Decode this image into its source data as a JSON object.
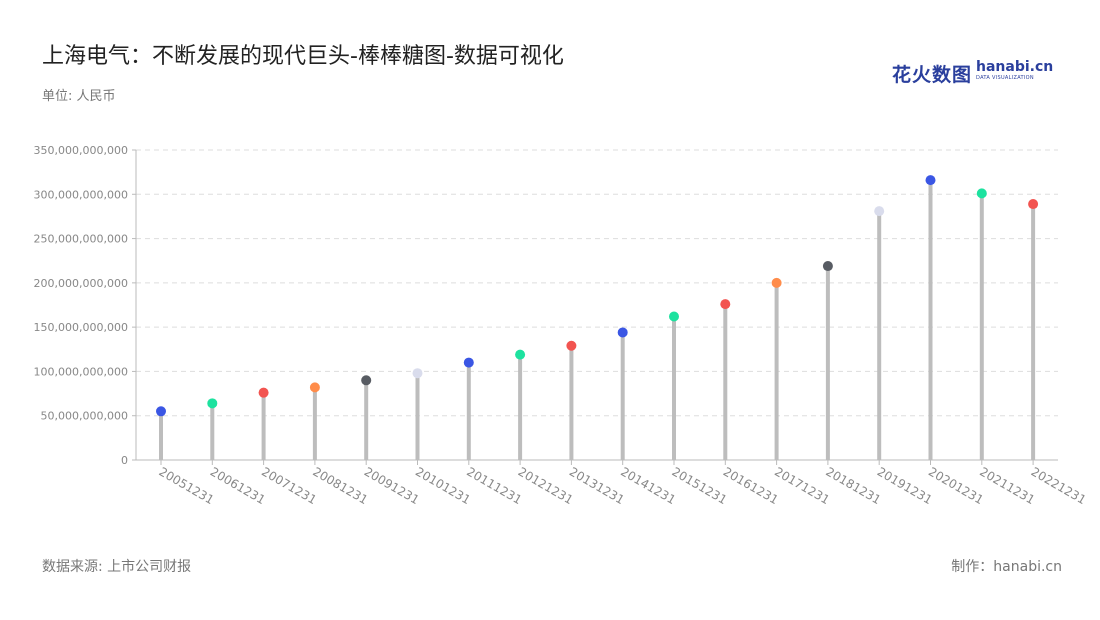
{
  "header": {
    "title": "上海电气：不断发展的现代巨头-棒棒糖图-数据可视化",
    "unit": "单位: 人民币"
  },
  "logo": {
    "cn": "花火数图",
    "en": "hanabi.cn",
    "tagline": "DATA VISUALIZATION"
  },
  "footer": {
    "source": "数据来源: 上市公司财报",
    "maker": "制作：hanabi.cn"
  },
  "colors": {
    "stem": "#bdbdbd",
    "grid": "#dddddd",
    "axis": "#bbbbbb"
  },
  "chart_data": {
    "type": "lollipop",
    "ylim": [
      0,
      350000000000
    ],
    "yticks": [
      0,
      50000000000,
      100000000000,
      150000000000,
      200000000000,
      250000000000,
      300000000000,
      350000000000
    ],
    "ytick_labels": [
      "0",
      "50,000,000,000",
      "100,000,000,000",
      "150,000,000,000",
      "200,000,000,000",
      "250,000,000,000",
      "300,000,000,000",
      "350,000,000,000"
    ],
    "grid": "horizontal-dashed",
    "categories": [
      "20051231",
      "20061231",
      "20071231",
      "20081231",
      "20091231",
      "20101231",
      "20111231",
      "20121231",
      "20131231",
      "20141231",
      "20151231",
      "20161231",
      "20171231",
      "20181231",
      "20191231",
      "20201231",
      "20211231",
      "20221231"
    ],
    "values": [
      55000000000,
      64000000000,
      76000000000,
      82000000000,
      90000000000,
      98000000000,
      110000000000,
      119000000000,
      129000000000,
      144000000000,
      162000000000,
      176000000000,
      200000000000,
      219000000000,
      281000000000,
      316000000000,
      301000000000,
      289000000000
    ],
    "point_colors": [
      "#3a56e4",
      "#1de29f",
      "#f25450",
      "#ff8c4a",
      "#585c63",
      "#d9dcec",
      "#3a56e4",
      "#1de29f",
      "#f25450",
      "#3a56e4",
      "#1de29f",
      "#f25450",
      "#ff8c4a",
      "#585c63",
      "#d9dcec",
      "#3a56e4",
      "#1de29f",
      "#f25450"
    ]
  }
}
